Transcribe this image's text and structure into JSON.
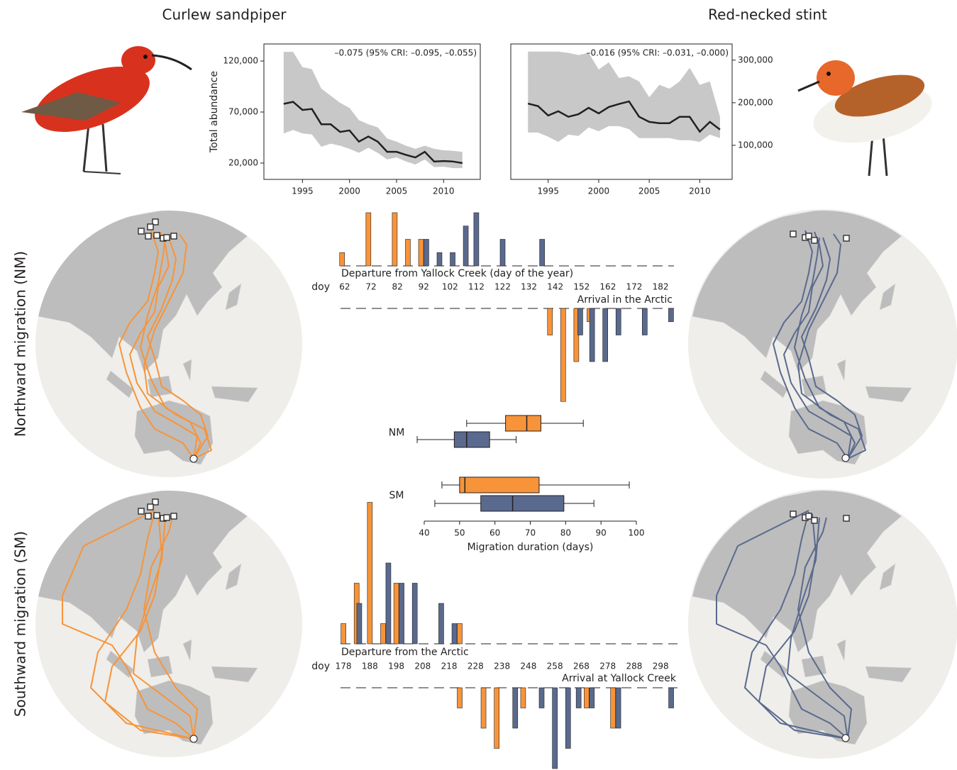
{
  "chart_data": [
    {
      "type": "line",
      "title": "Curlew sandpiper",
      "ylabel": "Total abundance",
      "annotation": "–0.075 (95% CRI: –0.095, –0.055)",
      "x": [
        1993,
        1994,
        1995,
        1996,
        1997,
        1998,
        1999,
        2000,
        2001,
        2002,
        2003,
        2004,
        2005,
        2006,
        2007,
        2008,
        2009,
        2010,
        2011,
        2012
      ],
      "series": [
        {
          "color": "#231f20",
          "values": [
            78000,
            80000,
            72000,
            73000,
            58000,
            58000,
            50500,
            52000,
            41000,
            46000,
            41000,
            31000,
            31000,
            28000,
            25500,
            31000,
            21500,
            22000,
            21500,
            20000
          ]
        }
      ],
      "band": {
        "color": "#c8c8c8",
        "upper": [
          129000,
          129000,
          114000,
          112000,
          93000,
          86000,
          79000,
          74000,
          62000,
          58000,
          55000,
          44000,
          41000,
          37000,
          34000,
          37000,
          34000,
          32500,
          32000,
          31000
        ],
        "lower": [
          49000,
          52500,
          49000,
          48000,
          36000,
          39000,
          37000,
          34000,
          30000,
          35000,
          30000,
          23500,
          25500,
          21500,
          18600,
          23500,
          16000,
          16500,
          15000,
          15000
        ]
      },
      "xlim": [
        1990.9,
        2013.9
      ],
      "ylim": [
        4000,
        136700
      ],
      "xticks": [
        1995,
        2000,
        2005,
        2010
      ],
      "yticks": [
        {
          "value": 20000,
          "label": "20,000"
        },
        {
          "value": 70000,
          "label": "70,000"
        },
        {
          "value": 120000,
          "label": "120,000"
        }
      ]
    },
    {
      "type": "line",
      "title": "Red-necked stint",
      "annotation": "–0.016 (95% CRI: –0.031, –0.000)",
      "x": [
        1993,
        1994,
        1995,
        1996,
        1997,
        1998,
        1999,
        2000,
        2001,
        2002,
        2003,
        2004,
        2005,
        2006,
        2007,
        2008,
        2009,
        2010,
        2011,
        2012
      ],
      "series": [
        {
          "color": "#231f20",
          "axis": "y2",
          "values": [
            198000,
            192000,
            170000,
            180000,
            167000,
            173000,
            188000,
            175000,
            190000,
            197000,
            203000,
            167000,
            155000,
            152000,
            152000,
            167000,
            167000,
            132000,
            155000,
            137000
          ]
        }
      ],
      "band": {
        "color": "#c8c8c8",
        "upper": [
          320000,
          320000,
          320000,
          320000,
          317000,
          312000,
          317000,
          278000,
          295000,
          258000,
          262000,
          250000,
          213000,
          242000,
          233000,
          250000,
          282000,
          242000,
          250000,
          167000
        ],
        "lower": [
          130000,
          130000,
          120000,
          108000,
          125000,
          122000,
          142000,
          133000,
          145000,
          145000,
          138000,
          117000,
          117000,
          117000,
          117000,
          112000,
          112000,
          108000,
          125000,
          117000
        ]
      },
      "xlim": [
        1991.3,
        2013.2
      ],
      "y2lim": [
        20000,
        338000
      ],
      "xticks": [
        1995,
        2000,
        2005,
        2010
      ],
      "y2ticks": [
        {
          "value": 100000,
          "label": "100,000"
        },
        {
          "value": 200000,
          "label": "200,000"
        },
        {
          "value": 300000,
          "label": "300,000"
        }
      ]
    },
    {
      "type": "bar",
      "title": "Northward migration (NM)",
      "xlabel": "doy",
      "xlim": [
        60.4,
        187.1
      ],
      "xticks": [
        62,
        72,
        82,
        92,
        102,
        112,
        122,
        132,
        142,
        152,
        162,
        172,
        182
      ],
      "departure": {
        "label": "Departure from Yallock Creek (day of the year)",
        "series": [
          {
            "color": "#f7943a",
            "x": [
              61,
              71,
              81,
              86,
              91
            ],
            "values": [
              1,
              4,
              4,
              2,
              2
            ]
          },
          {
            "color": "#5a6a8e",
            "x": [
              93,
              98,
              103,
              108,
              112,
              122,
              137
            ],
            "values": [
              2,
              1,
              1,
              3,
              4,
              2,
              2
            ]
          }
        ]
      },
      "arrival": {
        "label": "Arrival in the Arctic",
        "series": [
          {
            "color": "#f7943a",
            "x": [
              140,
              145,
              150,
              155
            ],
            "values": [
              2,
              7,
              4,
              1
            ]
          },
          {
            "color": "#5a6a8e",
            "x": [
              151.5,
              156,
              161,
              166,
              176,
              186
            ],
            "values": [
              2,
              4,
              4,
              2,
              2,
              1
            ]
          }
        ]
      }
    },
    {
      "type": "box",
      "xlabel": "Migration duration (days)",
      "categories": [
        "NM",
        "SM"
      ],
      "xlim": [
        40,
        100
      ],
      "xticks": [
        40,
        50,
        60,
        70,
        80,
        90,
        100
      ],
      "series": [
        {
          "color": "#f7943a",
          "min": [
            52,
            45
          ],
          "q1": [
            63,
            50
          ],
          "median": [
            69,
            51.5
          ],
          "q3": [
            73,
            72.5
          ],
          "max": [
            85,
            98
          ]
        },
        {
          "color": "#5a6a8e",
          "min": [
            38,
            43
          ],
          "q1": [
            48.5,
            56
          ],
          "median": [
            52,
            65
          ],
          "q3": [
            58.5,
            79.5
          ],
          "max": [
            66,
            88
          ]
        }
      ]
    },
    {
      "type": "bar",
      "title": "Southward migration (SM)",
      "xlabel": "doy",
      "xlim": [
        176.9,
        304.4
      ],
      "xticks": [
        178,
        188,
        198,
        208,
        218,
        228,
        238,
        248,
        258,
        268,
        278,
        288,
        298
      ],
      "departure": {
        "label": "Departure from the Arctic",
        "series": [
          {
            "color": "#f7943a",
            "x": [
              178,
              183,
              188,
              193,
              198,
              222
            ],
            "values": [
              1,
              3,
              7,
              1,
              3,
              1
            ]
          },
          {
            "color": "#5a6a8e",
            "x": [
              184,
              195,
              200,
              205,
              215,
              220
            ],
            "values": [
              2,
              4,
              3,
              3,
              2,
              1
            ]
          }
        ]
      },
      "arrival": {
        "label": "Arrival at Yallock Creek",
        "series": [
          {
            "color": "#f7943a",
            "x": [
              222,
              231,
              236,
              246,
              270,
              280
            ],
            "values": [
              1,
              2,
              3,
              1,
              1,
              2
            ]
          },
          {
            "color": "#5a6a8e",
            "x": [
              243,
              253,
              258,
              263,
              267,
              272,
              282,
              302
            ],
            "values": [
              2,
              1,
              4,
              3,
              1,
              1,
              2,
              1
            ]
          }
        ]
      }
    }
  ]
}
